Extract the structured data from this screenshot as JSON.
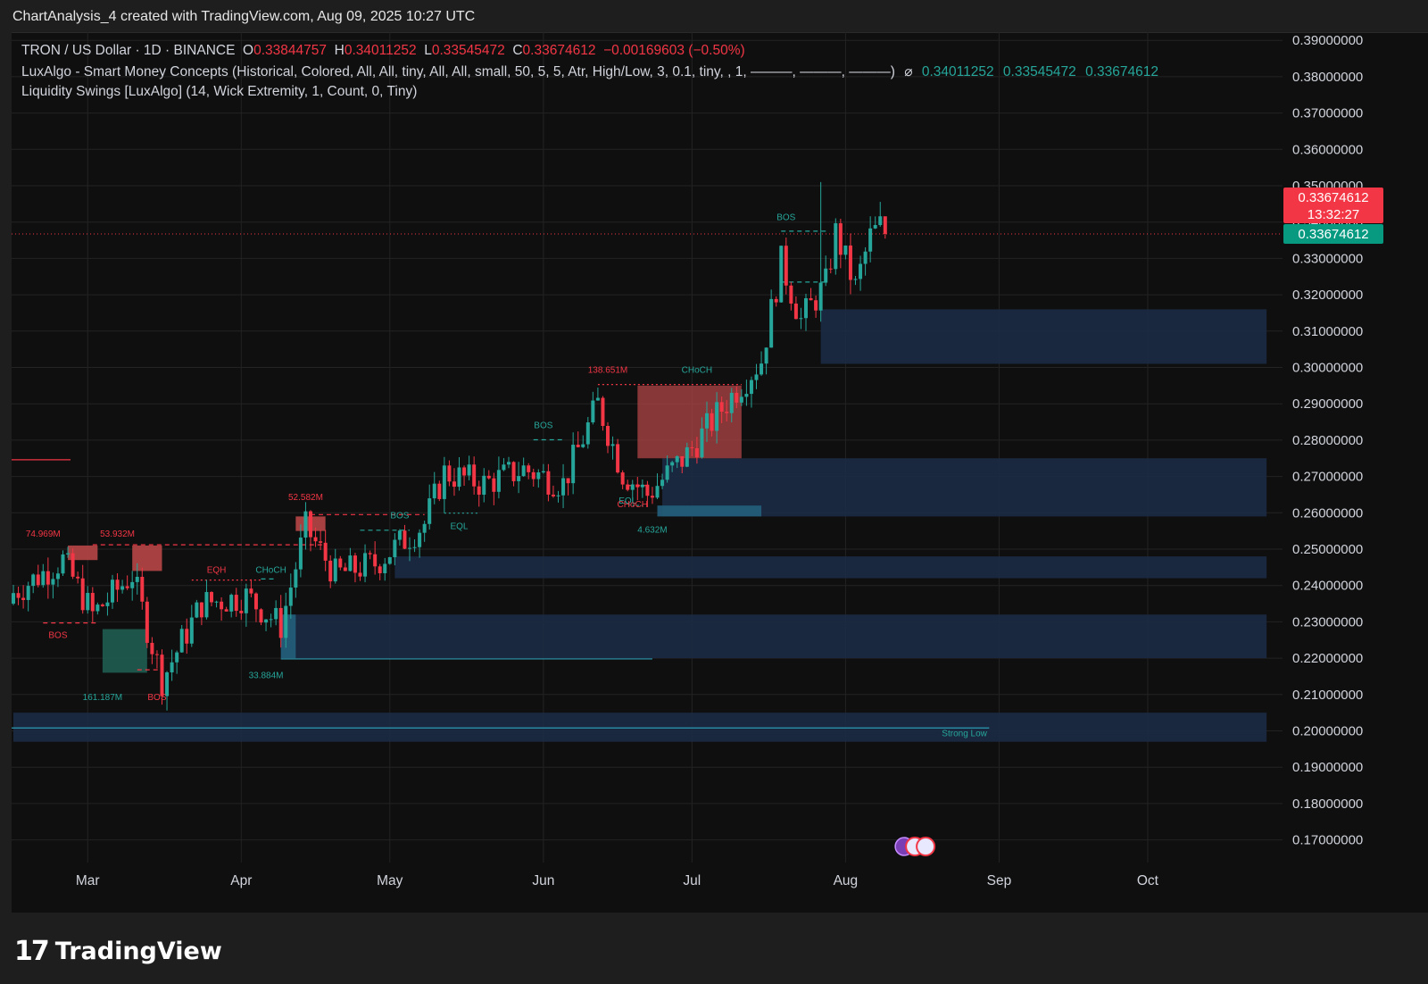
{
  "header": {
    "attribution": "ChartAnalysis_4 created with TradingView.com, Aug 09, 2025 10:27 UTC"
  },
  "legend": {
    "symbol": "TRON / US Dollar · 1D · BINANCE",
    "o_label": "O",
    "o_value": "0.33844757",
    "h_label": "H",
    "h_value": "0.34011252",
    "l_label": "L",
    "l_value": "0.33545472",
    "c_label": "C",
    "c_value": "0.33674612",
    "change": "−0.00169603 (−0.50%)",
    "indicator1": "LuxAlgo - Smart Money Concepts (Historical, Colored, All, All, tiny, All, All, small, 50, 5, 5, Atr, High/Low, 3, 0.1, tiny, , 1, ———, ———, ———)",
    "indicator1_icon": "eye-off-icon",
    "indicator1_values": [
      "0.34011252",
      "0.33545472",
      "0.33674612"
    ],
    "indicator2": "Liquidity Swings [LuxAlgo] (14, Wick Extremity, 1, Count, 0, Tiny)"
  },
  "price_tags": {
    "last_price": "0.33674612",
    "countdown": "13:32:27",
    "indicator_price": "0.33674612"
  },
  "footer": {
    "brand": "TradingView"
  },
  "colors": {
    "up": "#26a69a",
    "down": "#f23645",
    "background": "#0f0f0f",
    "demand_zone": "#1c2b45",
    "supply_zone": "#b04545",
    "grid": "#232323"
  },
  "chart_data": {
    "type": "candlestick",
    "x_ticks": [
      "Mar",
      "Apr",
      "May",
      "Jun",
      "Jul",
      "Aug",
      "Sep",
      "Oct"
    ],
    "y_ticks": [
      "0.39000000",
      "0.38000000",
      "0.37000000",
      "0.36000000",
      "0.35000000",
      "0.34000000",
      "0.33000000",
      "0.32000000",
      "0.31000000",
      "0.30000000",
      "0.29000000",
      "0.28000000",
      "0.27000000",
      "0.26000000",
      "0.25000000",
      "0.24000000",
      "0.23000000",
      "0.22000000",
      "0.21000000",
      "0.20000000",
      "0.19000000",
      "0.18000000",
      "0.17000000"
    ],
    "ylim": [
      0.165,
      0.395
    ],
    "last_close": 0.33674612,
    "series_keypoints": [
      {
        "date": "2025-02-14",
        "close": 0.238
      },
      {
        "date": "2025-02-24",
        "close": 0.247
      },
      {
        "date": "2025-03-02",
        "close": 0.232
      },
      {
        "date": "2025-03-10",
        "close": 0.243
      },
      {
        "date": "2025-03-16",
        "close": 0.214
      },
      {
        "date": "2025-03-24",
        "close": 0.235
      },
      {
        "date": "2025-04-02",
        "close": 0.237
      },
      {
        "date": "2025-04-09",
        "close": 0.229
      },
      {
        "date": "2025-04-14",
        "close": 0.256
      },
      {
        "date": "2025-04-20",
        "close": 0.243
      },
      {
        "date": "2025-04-28",
        "close": 0.246
      },
      {
        "date": "2025-05-08",
        "close": 0.257
      },
      {
        "date": "2025-05-12",
        "close": 0.271
      },
      {
        "date": "2025-05-20",
        "close": 0.268
      },
      {
        "date": "2025-05-28",
        "close": 0.272
      },
      {
        "date": "2025-06-05",
        "close": 0.268
      },
      {
        "date": "2025-06-12",
        "close": 0.29
      },
      {
        "date": "2025-06-17",
        "close": 0.271
      },
      {
        "date": "2025-06-22",
        "close": 0.265
      },
      {
        "date": "2025-06-30",
        "close": 0.276
      },
      {
        "date": "2025-07-10",
        "close": 0.294
      },
      {
        "date": "2025-07-15",
        "close": 0.302
      },
      {
        "date": "2025-07-19",
        "close": 0.329
      },
      {
        "date": "2025-07-23",
        "close": 0.313
      },
      {
        "date": "2025-07-28",
        "close": 0.323
      },
      {
        "date": "2025-07-30",
        "close": 0.337
      },
      {
        "date": "2025-08-03",
        "close": 0.322
      },
      {
        "date": "2025-08-06",
        "close": 0.336
      },
      {
        "date": "2025-08-08",
        "close": 0.339
      },
      {
        "date": "2025-08-09",
        "close": 0.33674612
      }
    ],
    "zones": [
      {
        "kind": "demand",
        "from": "2025-07-27",
        "to": "2025-10-25",
        "low": 0.301,
        "high": 0.316
      },
      {
        "kind": "demand",
        "from": "2025-06-25",
        "to": "2025-10-25",
        "low": 0.259,
        "high": 0.275
      },
      {
        "kind": "demand",
        "from": "2025-05-02",
        "to": "2025-10-25",
        "low": 0.242,
        "high": 0.248
      },
      {
        "kind": "demand",
        "from": "2025-04-09",
        "to": "2025-10-25",
        "low": 0.22,
        "high": 0.232
      },
      {
        "kind": "demand",
        "from": "2025-02-14",
        "to": "2025-10-25",
        "low": 0.197,
        "high": 0.205
      },
      {
        "kind": "supply",
        "from": "2025-06-20",
        "to": "2025-07-11",
        "low": 0.275,
        "high": 0.295
      }
    ],
    "annotations": [
      {
        "text": "74.969M",
        "color": "down"
      },
      {
        "text": "53.932M",
        "color": "down"
      },
      {
        "text": "BOS",
        "color": "down"
      },
      {
        "text": "161.187M",
        "color": "up"
      },
      {
        "text": "BOS",
        "color": "down"
      },
      {
        "text": "EQH",
        "color": "down"
      },
      {
        "text": "CHoCH",
        "color": "up"
      },
      {
        "text": "33.884M",
        "color": "up"
      },
      {
        "text": "52.582M",
        "color": "down"
      },
      {
        "text": "BOS",
        "color": "up"
      },
      {
        "text": "EQL",
        "color": "up"
      },
      {
        "text": "BOS",
        "color": "up"
      },
      {
        "text": "138.651M",
        "color": "down"
      },
      {
        "text": "CHoCH",
        "color": "up"
      },
      {
        "text": "EQL",
        "color": "up"
      },
      {
        "text": "CHoCH",
        "color": "down"
      },
      {
        "text": "4.632M",
        "color": "up"
      },
      {
        "text": "BOS",
        "color": "up"
      },
      {
        "text": "Strong Low",
        "color": "up"
      }
    ]
  }
}
